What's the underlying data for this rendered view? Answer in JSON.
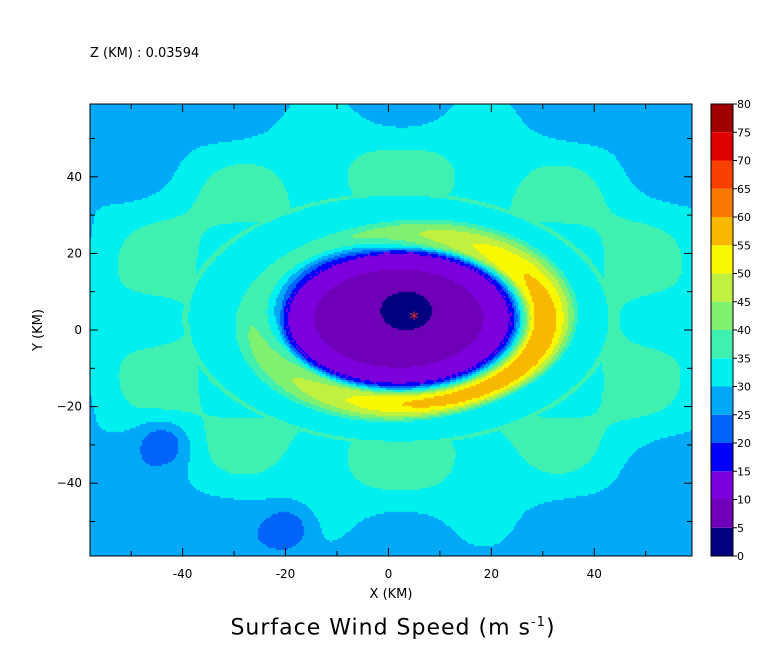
{
  "header": {
    "z_label": "Z (KM) : 0.03594"
  },
  "chart_data": {
    "type": "heatmap",
    "title": "Surface Wind Speed (m s",
    "title_units_exponent": "-1",
    "xlabel": "X (KM)",
    "ylabel": "Y (KM)",
    "xlim": [
      -58,
      59
    ],
    "ylim": [
      -59,
      59
    ],
    "x_ticks": [
      -40,
      -20,
      0,
      20,
      40
    ],
    "y_ticks": [
      -40,
      -20,
      0,
      20,
      40
    ],
    "x_tick_labels": [
      "-40",
      "-20",
      "0",
      "20",
      "40"
    ],
    "y_tick_labels": [
      "−40",
      "−20",
      "0",
      "20",
      "40"
    ],
    "colorbar": {
      "levels": [
        0,
        5,
        10,
        15,
        20,
        25,
        30,
        35,
        40,
        45,
        50,
        55,
        60,
        65,
        70,
        75,
        80
      ],
      "labels": [
        "0",
        "5",
        "10",
        "15",
        "20",
        "25",
        "30",
        "35",
        "40",
        "45",
        "50",
        "55",
        "60",
        "65",
        "70",
        "75",
        "80"
      ],
      "colors": [
        "#000080",
        "#7000B8",
        "#7C00DC",
        "#0000F8",
        "#0064F8",
        "#00A8F8",
        "#00F0F0",
        "#40F0B0",
        "#80F070",
        "#C0F040",
        "#F8F800",
        "#F8B800",
        "#F87800",
        "#F84000",
        "#E00000",
        "#A00000"
      ]
    },
    "storm_center": {
      "x": 5,
      "y": 3,
      "marker": "*"
    },
    "wind_field": {
      "background_speed": 27,
      "eye": {
        "x": 2,
        "y": 3,
        "radius_x": 18,
        "radius_y": 14,
        "speed_at_center": 5
      },
      "eyewall": {
        "radius_x": 28,
        "radius_y": 22,
        "peak_speed": 56,
        "max_segment_speed": 68
      },
      "weak_patches": [
        {
          "x": -44,
          "y": -30,
          "speed": 21
        },
        {
          "x": -20,
          "y": -52,
          "speed": 21
        }
      ]
    }
  }
}
